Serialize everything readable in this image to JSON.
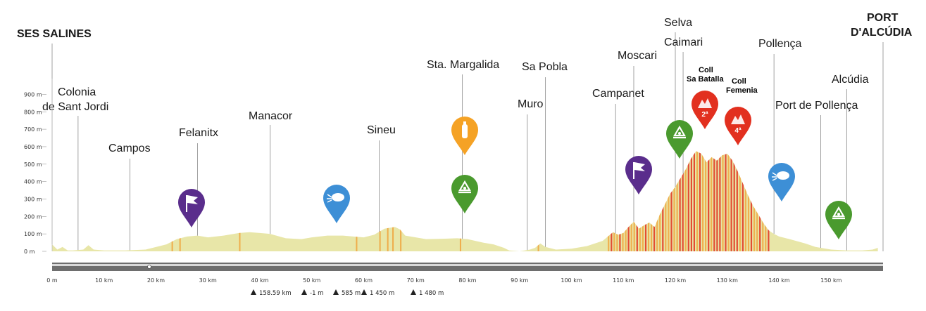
{
  "chart_data": {
    "type": "area",
    "title": "",
    "xlabel": "",
    "ylabel": "",
    "xlim": [
      0,
      160
    ],
    "ylim": [
      0,
      950
    ],
    "x_ticks": [
      "0 m",
      "10 km",
      "20 km",
      "30 km",
      "40 km",
      "50 km",
      "60 km",
      "70 km",
      "80 km",
      "90 km",
      "100 km",
      "110 km",
      "120 km",
      "130 km",
      "140 km",
      "150 km"
    ],
    "y_ticks": [
      "0 m",
      "100 m",
      "200 m",
      "300 m",
      "400 m",
      "500 m",
      "600 m",
      "700 m",
      "800 m",
      "900 m"
    ],
    "fill_color": "#e8e6a8",
    "climb_color": "#f0a640",
    "steep_color": "#e2301f",
    "profile": [
      [
        0,
        40
      ],
      [
        1,
        10
      ],
      [
        2,
        25
      ],
      [
        3,
        5
      ],
      [
        4,
        5
      ],
      [
        6,
        10
      ],
      [
        7,
        35
      ],
      [
        8,
        10
      ],
      [
        10,
        5
      ],
      [
        14,
        5
      ],
      [
        18,
        10
      ],
      [
        22,
        40
      ],
      [
        24,
        70
      ],
      [
        26,
        85
      ],
      [
        28,
        90
      ],
      [
        30,
        80
      ],
      [
        33,
        90
      ],
      [
        36,
        105
      ],
      [
        38,
        110
      ],
      [
        40,
        105
      ],
      [
        42,
        100
      ],
      [
        45,
        75
      ],
      [
        48,
        70
      ],
      [
        50,
        80
      ],
      [
        53,
        90
      ],
      [
        56,
        90
      ],
      [
        58,
        85
      ],
      [
        60,
        80
      ],
      [
        62,
        95
      ],
      [
        64,
        130
      ],
      [
        66,
        140
      ],
      [
        67,
        125
      ],
      [
        68,
        90
      ],
      [
        70,
        80
      ],
      [
        72,
        70
      ],
      [
        75,
        72
      ],
      [
        78,
        75
      ],
      [
        80,
        70
      ],
      [
        83,
        50
      ],
      [
        85,
        40
      ],
      [
        87,
        20
      ],
      [
        88,
        5
      ],
      [
        90,
        0
      ],
      [
        92,
        10
      ],
      [
        93,
        20
      ],
      [
        94,
        45
      ],
      [
        95,
        25
      ],
      [
        97,
        10
      ],
      [
        100,
        15
      ],
      [
        103,
        30
      ],
      [
        106,
        60
      ],
      [
        108,
        110
      ],
      [
        109,
        95
      ],
      [
        110,
        105
      ],
      [
        111,
        140
      ],
      [
        112,
        170
      ],
      [
        113,
        130
      ],
      [
        114,
        150
      ],
      [
        115,
        165
      ],
      [
        116,
        140
      ],
      [
        117,
        210
      ],
      [
        118,
        270
      ],
      [
        119,
        330
      ],
      [
        120,
        370
      ],
      [
        121,
        420
      ],
      [
        122,
        470
      ],
      [
        123,
        530
      ],
      [
        124,
        575
      ],
      [
        125,
        560
      ],
      [
        126,
        510
      ],
      [
        127,
        540
      ],
      [
        128,
        520
      ],
      [
        129,
        550
      ],
      [
        130,
        560
      ],
      [
        131,
        520
      ],
      [
        132,
        460
      ],
      [
        133,
        390
      ],
      [
        134,
        320
      ],
      [
        135,
        260
      ],
      [
        136,
        210
      ],
      [
        137,
        160
      ],
      [
        138,
        120
      ],
      [
        139,
        100
      ],
      [
        140,
        85
      ],
      [
        142,
        70
      ],
      [
        145,
        45
      ],
      [
        147,
        25
      ],
      [
        150,
        10
      ],
      [
        153,
        5
      ],
      [
        156,
        5
      ],
      [
        158,
        10
      ],
      [
        159,
        20
      ]
    ],
    "climb_zone_km": [
      107,
      138
    ],
    "towns": [
      {
        "name": "SES SALINES",
        "km": 0
      },
      {
        "name": "Colonia",
        "name2": "de Sant Jordi",
        "km": 5
      },
      {
        "name": "Campos",
        "km": 15
      },
      {
        "name": "Felanitx",
        "km": 28
      },
      {
        "name": "Manacor",
        "km": 42
      },
      {
        "name": "Sineu",
        "km": 63
      },
      {
        "name": "Sta. Margalida",
        "km": 79
      },
      {
        "name": "Muro",
        "km": 91.5
      },
      {
        "name": "Sa Pobla",
        "km": 95
      },
      {
        "name": "Campanet",
        "km": 108.5
      },
      {
        "name": "Moscari",
        "km": 112
      },
      {
        "name": "Selva",
        "km": 120
      },
      {
        "name": "Caimari",
        "km": 121.5
      },
      {
        "name": "Pollença",
        "km": 139
      },
      {
        "name": "Port de Pollença",
        "km": 148
      },
      {
        "name": "Alcúdia",
        "km": 153
      },
      {
        "name": "PORT",
        "name2": "D'ALCÚDIA",
        "km": 160
      }
    ],
    "climbs": [
      {
        "name": "Coll",
        "name2": "Sa Batalla",
        "category": "2ª",
        "km": 124.5
      },
      {
        "name": "Coll",
        "name2": "Femenia",
        "category": "4ª",
        "km": 131
      }
    ],
    "markers": [
      {
        "type": "sprint",
        "icon": "flag-icon",
        "color": "#5a2d8c",
        "km": 26.5
      },
      {
        "type": "feed",
        "icon": "water-drop-icon",
        "color": "#3d8fd6",
        "km": 54
      },
      {
        "type": "refreshment",
        "icon": "bottle-icon",
        "color": "#f5a225",
        "km": 79
      },
      {
        "type": "waste-zone",
        "icon": "recycle-icon",
        "color": "#4a9a2e",
        "km": 79
      },
      {
        "type": "sprint",
        "icon": "flag-icon",
        "color": "#5a2d8c",
        "km": 112
      },
      {
        "type": "waste-zone",
        "icon": "recycle-icon",
        "color": "#4a9a2e",
        "km": 119.5
      },
      {
        "type": "feed",
        "icon": "water-drop-icon",
        "color": "#3d8fd6",
        "km": 138
      },
      {
        "type": "waste-zone",
        "icon": "recycle-icon",
        "color": "#4a9a2e",
        "km": 151
      }
    ],
    "stats": [
      "158.59 km",
      "-1 m",
      "585 m",
      "1 450 m",
      "1 480 m"
    ],
    "grid": false,
    "legend": "none"
  }
}
